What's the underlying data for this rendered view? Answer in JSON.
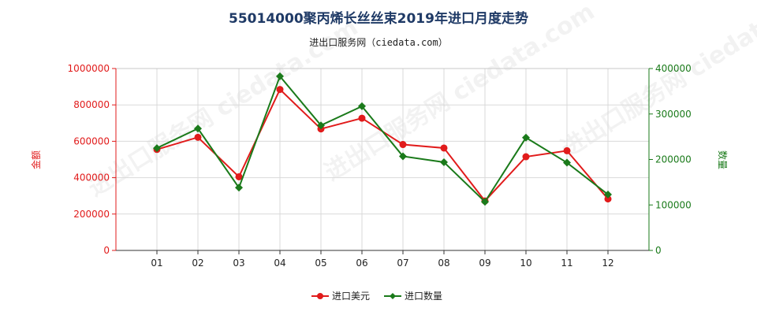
{
  "chart_data": {
    "type": "line",
    "title": "55014000聚丙烯长丝丝束2019年进口月度走势",
    "subtitle": "进出口服务网（ciedata.com）",
    "watermark": "进出口服务网 ciedata.com",
    "categories": [
      "01",
      "02",
      "03",
      "04",
      "05",
      "06",
      "07",
      "08",
      "09",
      "10",
      "11",
      "12"
    ],
    "y_left": {
      "label": "金额",
      "ylim": [
        0,
        1000000
      ],
      "ticks": [
        "0",
        "200000",
        "400000",
        "600000",
        "800000",
        "1000000"
      ],
      "color": "#e11b1b"
    },
    "y_right": {
      "label": "数量",
      "ylim": [
        0,
        400000
      ],
      "ticks": [
        "0",
        "100000",
        "200000",
        "300000",
        "400000"
      ],
      "color": "#1a7a1a"
    },
    "series": [
      {
        "name": "进口美元",
        "axis": "left",
        "color": "#e11b1b",
        "marker": "circle",
        "values": [
          555000,
          622000,
          405000,
          885000,
          668000,
          727000,
          582000,
          563000,
          272000,
          515000,
          548000,
          283000
        ]
      },
      {
        "name": "进口数量",
        "axis": "right",
        "color": "#1a7a1a",
        "marker": "diamond",
        "values": [
          225000,
          268000,
          138000,
          383000,
          275000,
          317000,
          207000,
          194000,
          107000,
          248000,
          193000,
          123000
        ]
      }
    ],
    "grid": true,
    "legend_position": "bottom-center"
  }
}
